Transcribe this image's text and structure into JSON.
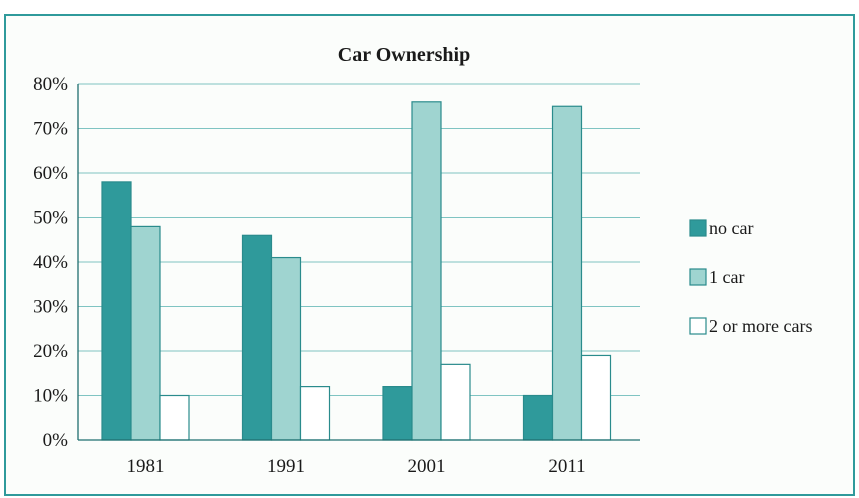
{
  "chart_data": {
    "type": "bar",
    "title": "Car Ownership",
    "xlabel": "",
    "ylabel": "",
    "categories": [
      "1981",
      "1991",
      "2001",
      "2011"
    ],
    "series": [
      {
        "name": "no car",
        "values": [
          58,
          46,
          12,
          10
        ],
        "color": "#2f9a9b"
      },
      {
        "name": "1 car",
        "values": [
          48,
          41,
          76,
          75
        ],
        "color": "#9fd4d0"
      },
      {
        "name": "2 or more cars",
        "values": [
          10,
          12,
          17,
          19
        ],
        "color": "#ffffff"
      }
    ],
    "ylim": [
      0,
      80
    ],
    "yticks": [
      0,
      10,
      20,
      30,
      40,
      50,
      60,
      70,
      80
    ],
    "ytick_labels": [
      "0%",
      "10%",
      "20%",
      "30%",
      "40%",
      "50%",
      "60%",
      "70%",
      "80%"
    ],
    "grid": true,
    "legend_position": "right",
    "colors": {
      "frame": "#2f9a9b",
      "gridline": "#7fc4c2",
      "bar_outline": "#2a8b8c"
    }
  }
}
